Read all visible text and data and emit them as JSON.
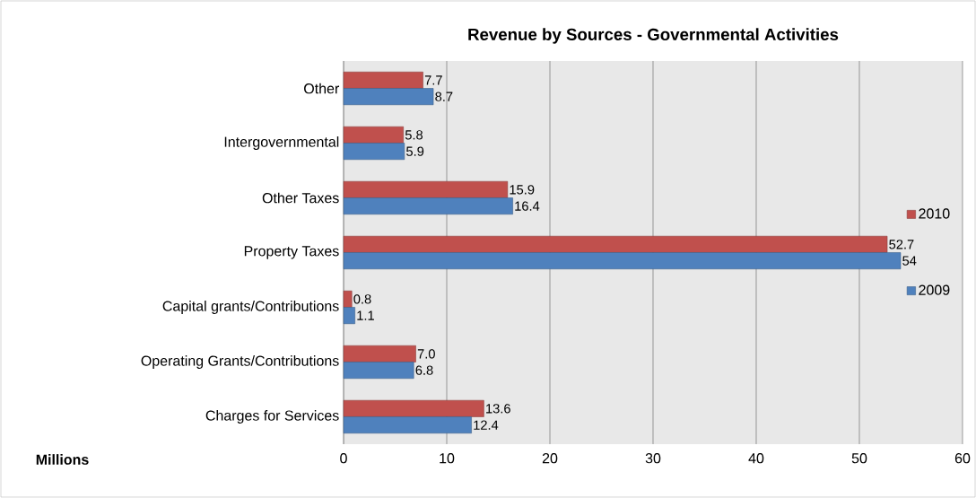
{
  "chart_data": {
    "type": "bar",
    "orientation": "horizontal",
    "title": "Revenue by Sources - Governmental Activities",
    "xlabel": "Millions",
    "categories": [
      "Other",
      "Intergovernmental",
      "Other Taxes",
      "Property Taxes",
      "Capital grants/Contributions",
      "Operating Grants/Contributions",
      "Charges for Services"
    ],
    "series": [
      {
        "name": "2010",
        "color": "#c0504d",
        "values": [
          7.7,
          5.8,
          15.9,
          52.7,
          0.8,
          7.0,
          13.6
        ],
        "value_labels": [
          "7.7",
          "5.8",
          "15.9",
          "52.7",
          "0.8",
          "7.0",
          "13.6"
        ]
      },
      {
        "name": "2009",
        "color": "#4f81bd",
        "values": [
          8.7,
          5.9,
          16.4,
          54,
          1.1,
          6.8,
          12.4
        ],
        "value_labels": [
          "8.7",
          "5.9",
          "16.4",
          "54",
          "1.1",
          "6.8",
          "12.4"
        ]
      }
    ],
    "xlim": [
      0,
      60
    ],
    "xticks": [
      0,
      10,
      20,
      30,
      40,
      50,
      60
    ],
    "grid": "x",
    "legend": "right"
  }
}
